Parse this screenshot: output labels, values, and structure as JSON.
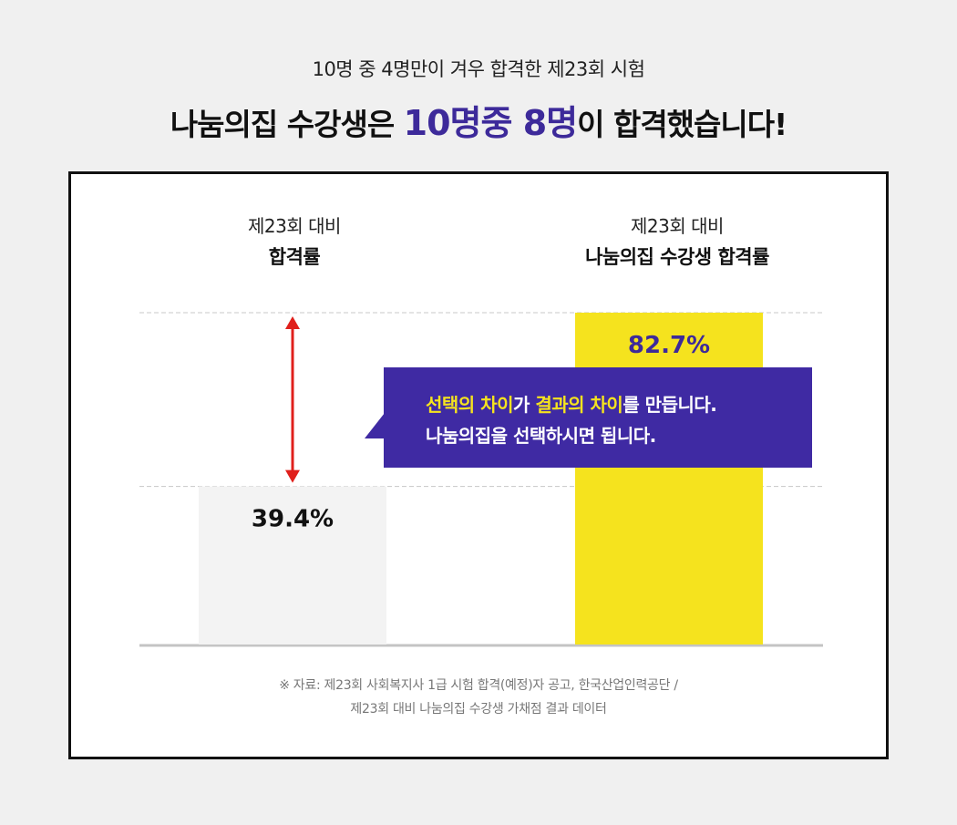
{
  "header": {
    "subtitle": "10명 중 4명만이 겨우 합격한 제23회 시험",
    "headline_prefix": "나눔의집 수강생은 ",
    "headline_highlight": "10명중 8명",
    "headline_suffix": "이 합격했습니다!"
  },
  "columns": [
    {
      "line1": "제23회 대비",
      "line2": "합격률"
    },
    {
      "line1": "제23회 대비",
      "line2": "나눔의집 수강생 합격률"
    }
  ],
  "callout": {
    "line1_part1": "선택의 차이",
    "line1_part2": "가 ",
    "line1_part3": "결과의 차이",
    "line1_part4": "를 만듭니다.",
    "line2": "나눔의집을 선택하시면 됩니다."
  },
  "note": {
    "line1": "※ 자료: 제23회 사회복지사 1급 시험 합격(예정)자 공고, 한국산업인력공단 /",
    "line2": "제23회 대비 나눔의집 수강생 가채점 결과 데이터"
  },
  "chart_data": {
    "type": "bar",
    "categories": [
      "합격률",
      "나눔의집 수강생 합격률"
    ],
    "values": [
      39.4,
      82.7
    ],
    "value_labels": [
      "39.4%",
      "82.7%"
    ],
    "colors": [
      "#f3f3f3",
      "#f5e31e"
    ],
    "label_colors": [
      "#111111",
      "#3d2a9a"
    ],
    "arrow_color": "#e0201c",
    "grid": "dashed"
  }
}
